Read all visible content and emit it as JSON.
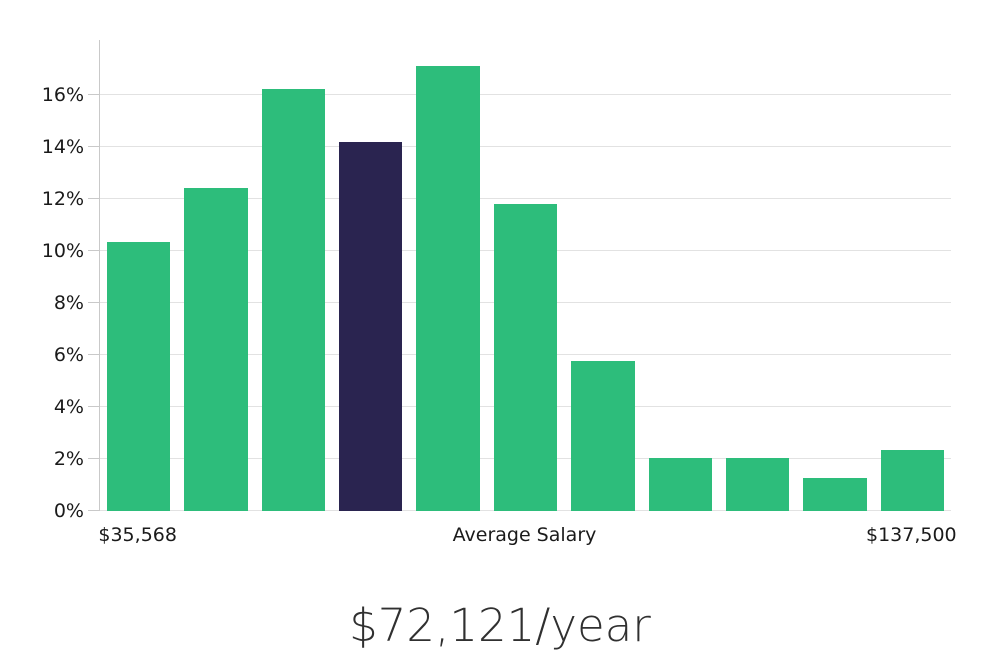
{
  "chart_data": {
    "type": "bar",
    "title": "$72,121/year",
    "xlabel": "",
    "ylabel": "",
    "values": [
      10.35,
      12.4,
      16.2,
      14.2,
      17.1,
      11.8,
      5.75,
      2.05,
      2.05,
      1.25,
      2.35
    ],
    "highlight_index": 3,
    "num_bins": 11,
    "ylim": [
      0,
      18.1
    ],
    "yticks": [
      0,
      2,
      4,
      6,
      8,
      10,
      12,
      14,
      16
    ],
    "ytick_suffix": "%",
    "x_tick_labels": [
      {
        "bar_index": 0,
        "label": "$35,568"
      },
      {
        "bar_index": 5,
        "label": "Average Salary"
      },
      {
        "bar_index": 10,
        "label": "$137,500"
      }
    ],
    "grid_on": true,
    "legend": "none",
    "colors": {
      "bar": "#2dbd7b",
      "highlight": "#2a2450",
      "gridline": "#e2e2e2",
      "axis": "#c9c9c9",
      "tick_text": "#1a1a1a",
      "title_text": "#303030",
      "background": "#ffffff"
    }
  }
}
